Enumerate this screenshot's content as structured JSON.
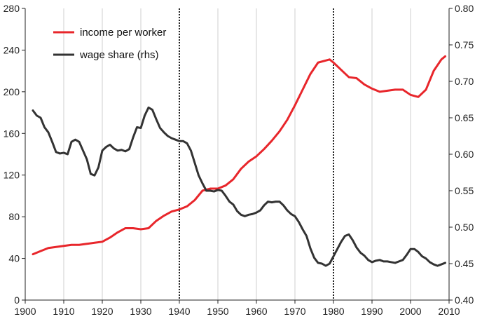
{
  "chart_data": {
    "type": "line",
    "title": "",
    "xlabel": "",
    "ylabel": "",
    "xlim": [
      1900,
      2010
    ],
    "ylim": [
      0,
      280
    ],
    "ylim_right": [
      0.4,
      0.8
    ],
    "x_ticks": [
      "1900",
      "1910",
      "1920",
      "1930",
      "1940",
      "1950",
      "1960",
      "1970",
      "1980",
      "1990",
      "2000",
      "2010"
    ],
    "y_ticks_left": [
      "0",
      "40",
      "80",
      "120",
      "160",
      "200",
      "240",
      "280"
    ],
    "y_ticks_right": [
      "0.40",
      "0.45",
      "0.50",
      "0.55",
      "0.60",
      "0.65",
      "0.70",
      "0.75",
      "0.80"
    ],
    "grid": "vertical",
    "legend_position": "top-left",
    "reference_lines_x": [
      1940,
      1980
    ],
    "series": [
      {
        "name": "income per worker",
        "axis": "left",
        "color": "#e8262b",
        "x": [
          1902,
          1904,
          1906,
          1908,
          1910,
          1912,
          1914,
          1916,
          1918,
          1920,
          1922,
          1924,
          1926,
          1928,
          1930,
          1932,
          1934,
          1936,
          1938,
          1940,
          1942,
          1944,
          1946,
          1948,
          1950,
          1952,
          1954,
          1956,
          1958,
          1960,
          1962,
          1964,
          1966,
          1968,
          1970,
          1972,
          1974,
          1976,
          1978,
          1979,
          1980,
          1982,
          1984,
          1986,
          1988,
          1990,
          1992,
          1994,
          1996,
          1998,
          2000,
          2002,
          2004,
          2006,
          2008,
          2009
        ],
        "values": [
          44,
          47,
          50,
          51,
          52,
          53,
          53,
          54,
          55,
          56,
          60,
          65,
          69,
          69,
          68,
          69,
          76,
          81,
          85,
          87,
          90,
          96,
          105,
          107,
          107,
          110,
          116,
          126,
          133,
          138,
          145,
          153,
          162,
          173,
          187,
          202,
          217,
          228,
          230,
          231,
          228,
          221,
          214,
          213,
          207,
          203,
          200,
          201,
          202,
          202,
          197,
          195,
          202,
          220,
          231,
          234
        ]
      },
      {
        "name": "wage share (rhs)",
        "axis": "right",
        "color": "#333333",
        "x": [
          1902,
          1903,
          1904,
          1905,
          1906,
          1907,
          1908,
          1909,
          1910,
          1911,
          1912,
          1913,
          1914,
          1915,
          1916,
          1917,
          1918,
          1919,
          1920,
          1921,
          1922,
          1923,
          1924,
          1925,
          1926,
          1927,
          1928,
          1929,
          1930,
          1931,
          1932,
          1933,
          1934,
          1935,
          1936,
          1937,
          1938,
          1939,
          1940,
          1941,
          1942,
          1943,
          1944,
          1945,
          1946,
          1947,
          1948,
          1949,
          1950,
          1951,
          1952,
          1953,
          1954,
          1955,
          1956,
          1957,
          1958,
          1959,
          1960,
          1961,
          1962,
          1963,
          1964,
          1965,
          1966,
          1967,
          1968,
          1969,
          1970,
          1971,
          1972,
          1973,
          1974,
          1975,
          1976,
          1977,
          1978,
          1979,
          1980,
          1981,
          1982,
          1983,
          1984,
          1985,
          1986,
          1987,
          1988,
          1989,
          1990,
          1991,
          1992,
          1993,
          1994,
          1995,
          1996,
          1997,
          1998,
          1999,
          2000,
          2001,
          2002,
          2003,
          2004,
          2005,
          2006,
          2007,
          2008,
          2009
        ],
        "values": [
          0.66,
          0.653,
          0.65,
          0.637,
          0.63,
          0.617,
          0.603,
          0.601,
          0.602,
          0.6,
          0.617,
          0.62,
          0.617,
          0.605,
          0.593,
          0.573,
          0.571,
          0.582,
          0.605,
          0.61,
          0.613,
          0.608,
          0.605,
          0.606,
          0.604,
          0.607,
          0.623,
          0.637,
          0.636,
          0.653,
          0.664,
          0.661,
          0.648,
          0.636,
          0.63,
          0.625,
          0.622,
          0.62,
          0.618,
          0.618,
          0.615,
          0.605,
          0.588,
          0.571,
          0.56,
          0.55,
          0.55,
          0.549,
          0.551,
          0.55,
          0.543,
          0.535,
          0.531,
          0.522,
          0.517,
          0.515,
          0.517,
          0.518,
          0.52,
          0.523,
          0.53,
          0.535,
          0.534,
          0.535,
          0.535,
          0.53,
          0.523,
          0.518,
          0.515,
          0.507,
          0.497,
          0.488,
          0.471,
          0.458,
          0.451,
          0.45,
          0.447,
          0.45,
          0.46,
          0.47,
          0.48,
          0.488,
          0.49,
          0.482,
          0.472,
          0.465,
          0.461,
          0.455,
          0.452,
          0.454,
          0.455,
          0.453,
          0.453,
          0.452,
          0.451,
          0.453,
          0.455,
          0.462,
          0.47,
          0.47,
          0.466,
          0.46,
          0.457,
          0.452,
          0.449,
          0.447,
          0.449,
          0.451
        ]
      }
    ]
  }
}
